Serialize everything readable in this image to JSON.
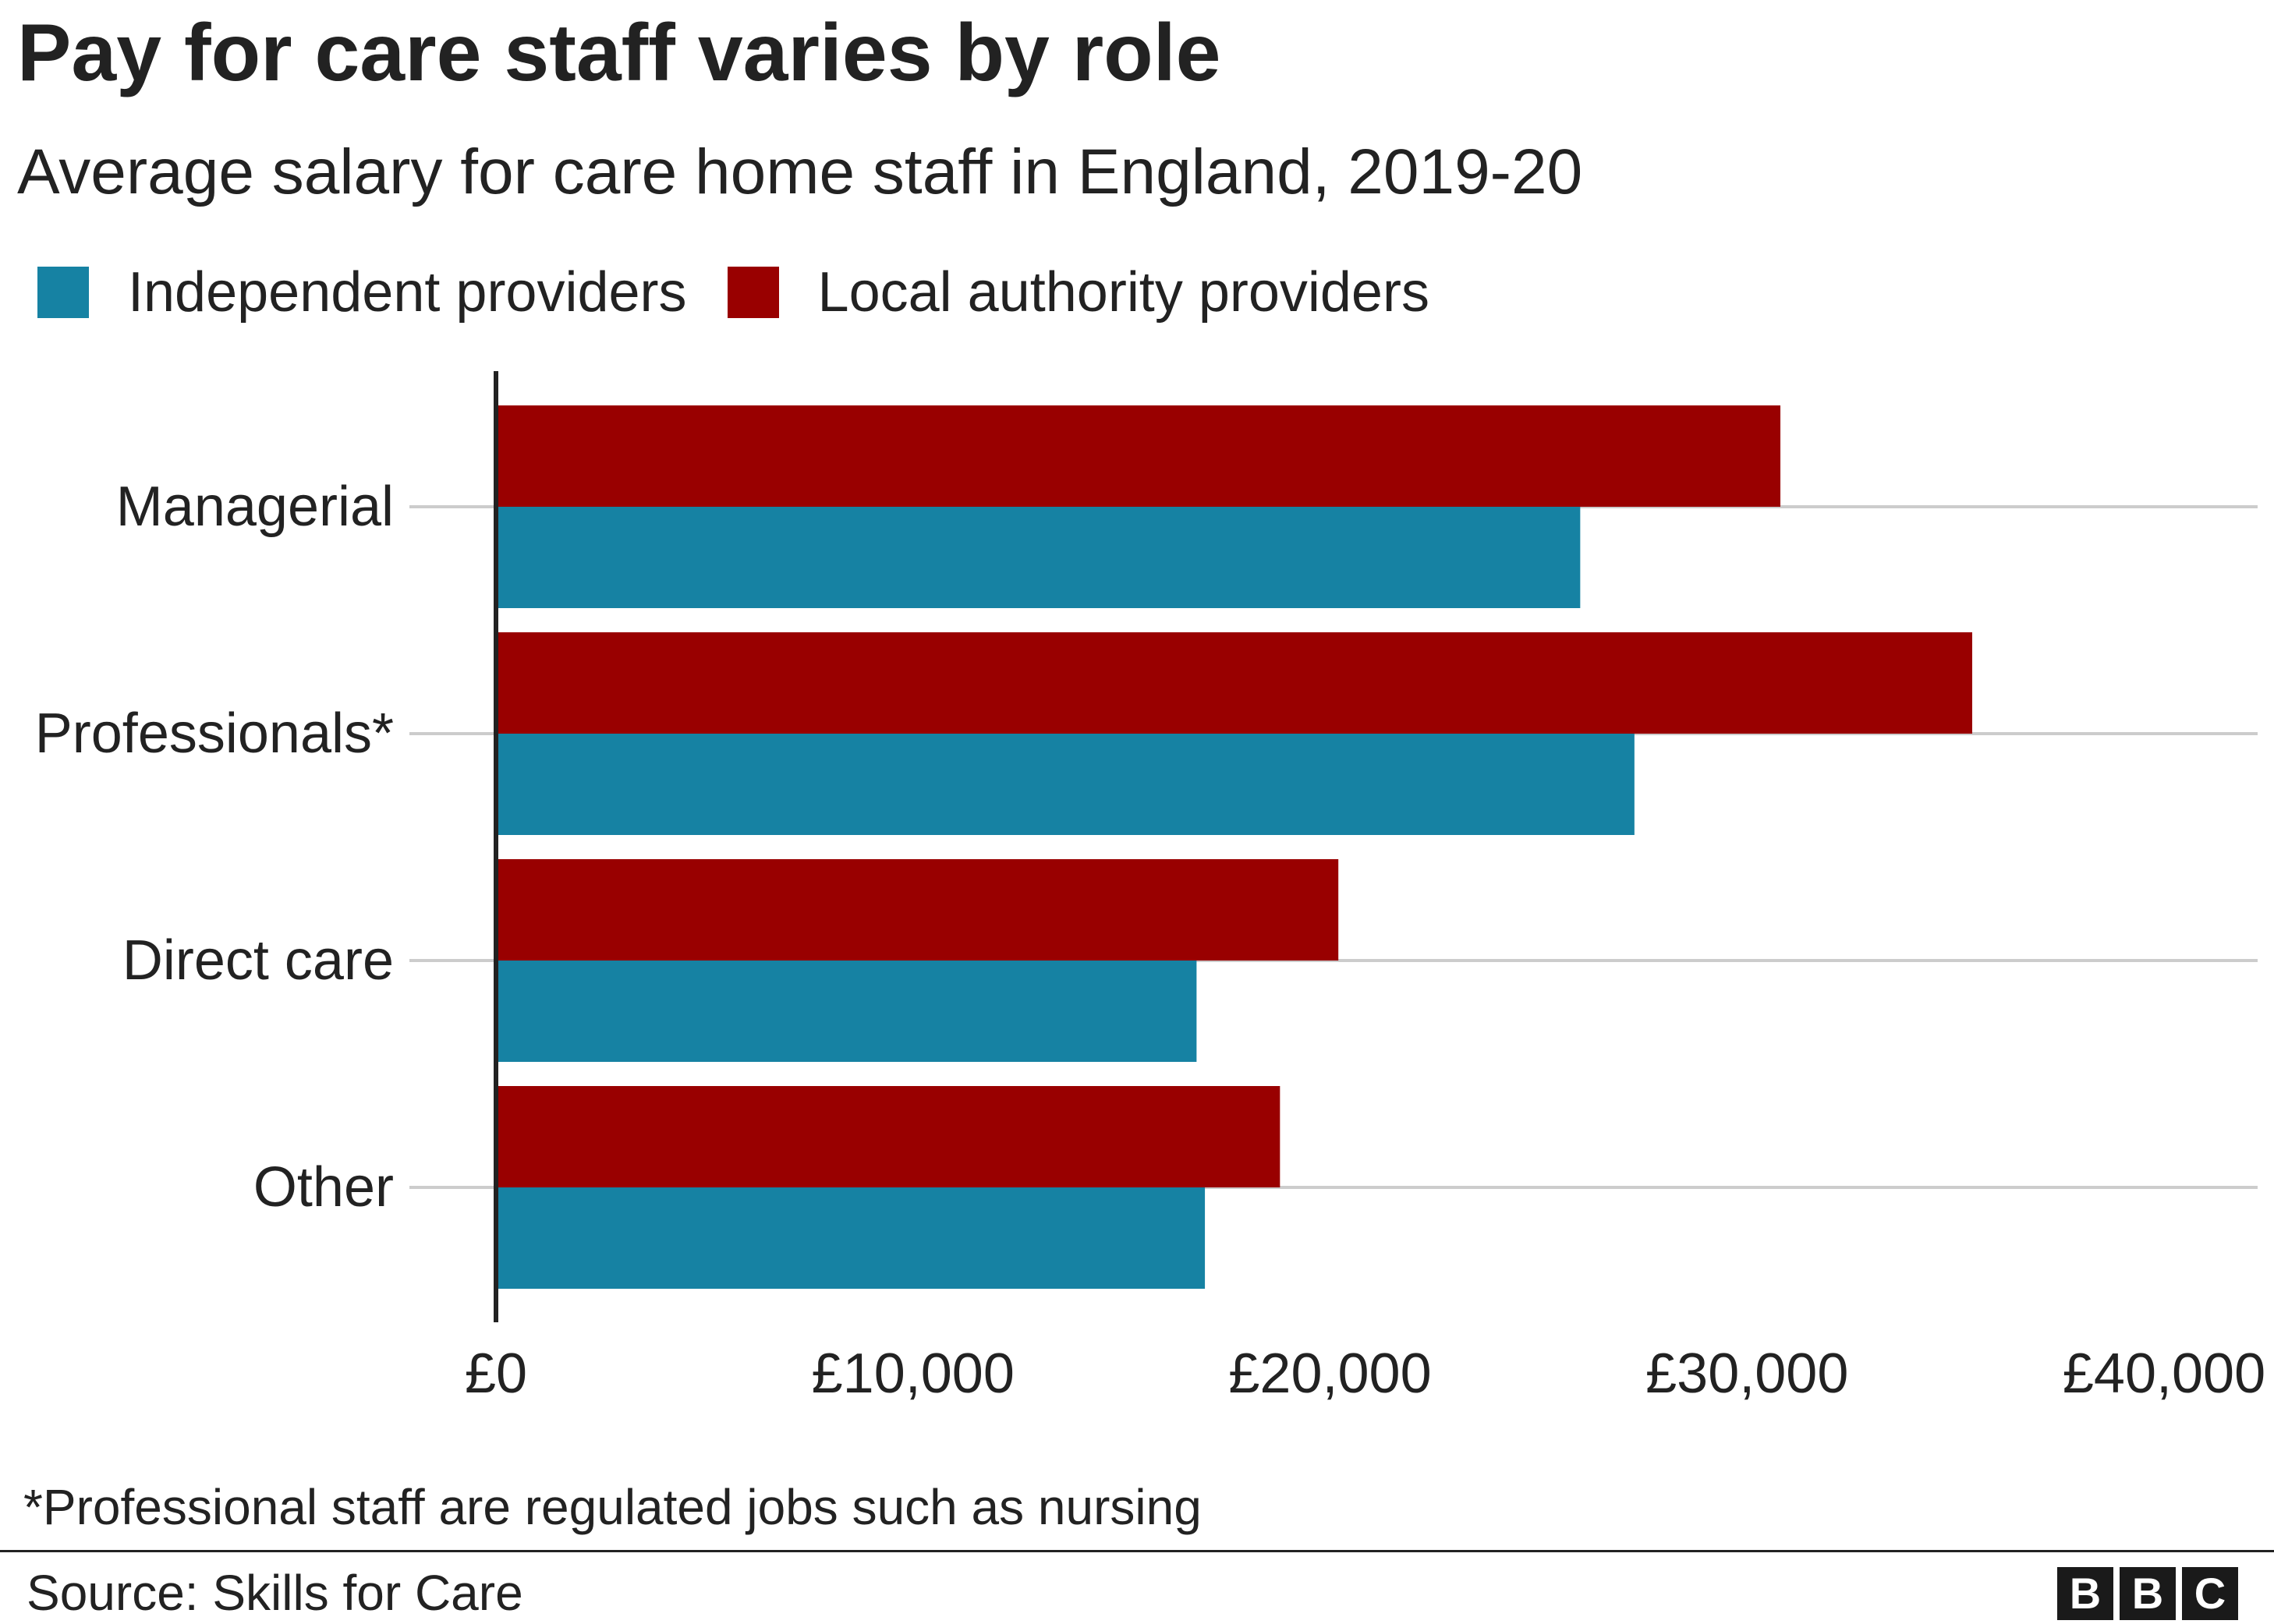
{
  "title": "Pay for care staff varies by role",
  "subtitle": "Average salary for care home staff in England, 2019-20",
  "footnote": "*Professional staff are regulated jobs such as nursing",
  "source": "Source: Skills for Care",
  "logo": {
    "letters": [
      "B",
      "B",
      "C"
    ]
  },
  "colors": {
    "independent": "#1682a3",
    "local_authority": "#990000",
    "axis": "#222222",
    "grid": "#cccccc"
  },
  "chart_data": {
    "type": "bar",
    "orientation": "horizontal",
    "categories": [
      "Managerial",
      "Professionals*",
      "Direct care",
      "Other"
    ],
    "series": [
      {
        "name": "Independent providers",
        "color": "#1682a3",
        "values": [
          26000,
          27300,
          16800,
          17000
        ]
      },
      {
        "name": "Local authority providers",
        "color": "#990000",
        "values": [
          30800,
          35400,
          20200,
          18800
        ]
      }
    ],
    "xlim": [
      0,
      40000
    ],
    "xticks": [
      0,
      10000,
      20000,
      30000,
      40000
    ],
    "xtick_labels": [
      "£0",
      "£10,000",
      "£20,000",
      "£30,000",
      "£40,000"
    ],
    "grid": "horizontal",
    "legend_position": "top-left"
  }
}
